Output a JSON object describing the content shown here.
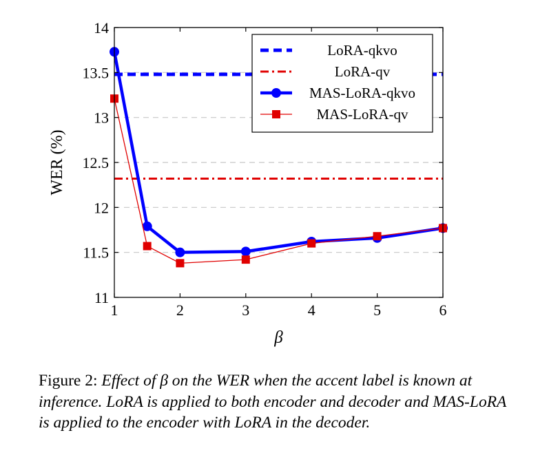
{
  "chart_data": {
    "type": "line",
    "title": "",
    "xlabel": "β",
    "ylabel": "WER (%)",
    "xlim": [
      1,
      6
    ],
    "ylim": [
      11,
      14
    ],
    "xticks": [
      "1",
      "2",
      "3",
      "4",
      "5",
      "6"
    ],
    "yticks": [
      "11",
      "11.5",
      "12",
      "12.5",
      "13",
      "13.5",
      "14"
    ],
    "grid": "horizontal-dashed",
    "legend_position": "top-right",
    "series": [
      {
        "name": "LoRA-qkvo",
        "style": "dashed",
        "color": "#0000ff",
        "x": [
          1,
          6
        ],
        "y": [
          13.48,
          13.48
        ]
      },
      {
        "name": "LoRA-qv",
        "style": "dash-dot",
        "color": "#e00000",
        "x": [
          1,
          6
        ],
        "y": [
          12.32,
          12.32
        ]
      },
      {
        "name": "MAS-LoRA-qkvo",
        "style": "solid",
        "marker": "circle",
        "color": "#0000ff",
        "x": [
          1,
          1.5,
          2,
          3,
          4,
          5,
          6
        ],
        "y": [
          13.73,
          11.79,
          11.5,
          11.51,
          11.62,
          11.66,
          11.77
        ]
      },
      {
        "name": "MAS-LoRA-qv",
        "style": "solid",
        "marker": "square",
        "color": "#e00000",
        "x": [
          1,
          1.5,
          2,
          3,
          4,
          5,
          6
        ],
        "y": [
          13.21,
          11.57,
          11.38,
          11.42,
          11.6,
          11.68,
          11.77
        ]
      }
    ]
  },
  "caption": {
    "label": "Figure 2:",
    "text": "Effect of β on the WER when the accent label is known at inference. LoRA is applied to both encoder and decoder and MAS-LoRA is applied to the encoder with LoRA in the decoder."
  }
}
